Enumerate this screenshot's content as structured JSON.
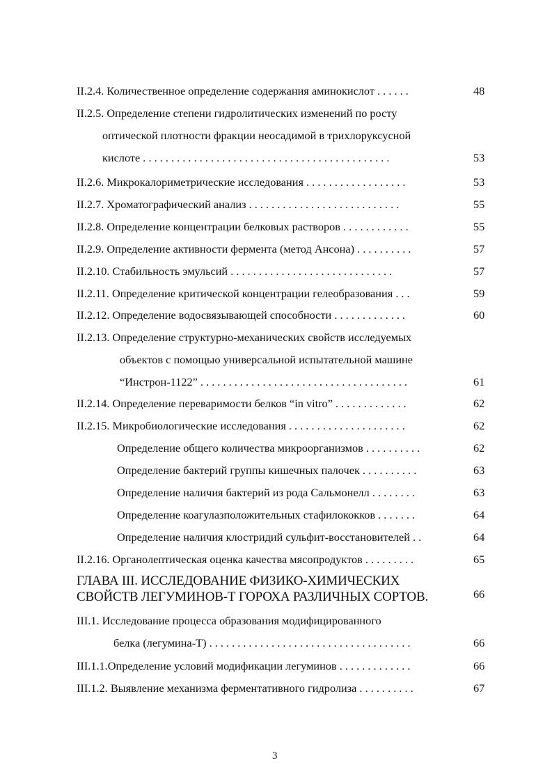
{
  "toc": [
    {
      "text": "II.2.4. Количественное определение содержания аминокислот . . . . . .",
      "page": "48"
    },
    {
      "text": "II.2.5. Определение степени гидролитических изменений по росту",
      "page": ""
    },
    {
      "text": "оптической плотности фракции неосадимой в трихлоруксусной",
      "page": ""
    },
    {
      "text": "кислоте . . . . . . . . . . . . . . . . . . . . . . . . . . . . . . . . . . . . . . . . . . . .",
      "page": "53"
    },
    {
      "text": "II.2.6. Микрокалориметрические исследования . . . . . . . . . . . . . . . . . .",
      "page": "53"
    },
    {
      "text": "II.2.7. Хроматографический анализ . . . . . . . . . . . . . . . . . . . . . . . . . . .",
      "page": "55"
    },
    {
      "text": "II.2.8. Определение концентрации белковых растворов . . . . . . . . . . . .",
      "page": "55"
    },
    {
      "text": "II.2.9. Определение активности фермента (метод Ансона) . . . . . . . . . .",
      "page": "57"
    },
    {
      "text": "II.2.10. Стабильность эмульсий . . . . . . . . . . . . . . . . . . . . . . . . . . . . .",
      "page": "57"
    },
    {
      "text": "II.2.11. Определение критической концентрации гелеобразования . . .",
      "page": "59"
    },
    {
      "text": "II.2.12. Определение водосвязывающей способности . . . . . . . . . . . . .",
      "page": "60"
    },
    {
      "text": "II.2.13. Определение структурно-механических свойств исследуемых",
      "page": ""
    },
    {
      "text": "объектов с помощью универсальной испытательной машине",
      "page": ""
    },
    {
      "text": "“Инстрон-1122” . . . . . . . . . . . . . . . . . . . . . . . . . . . . . . . . . . . . .",
      "page": "61"
    },
    {
      "text": "II.2.14. Определение переваримости белков “in vitro” . . . . . . . . . . . . .",
      "page": "62"
    },
    {
      "text": "II.2.15. Микробиологические  исследования . . . . . . . . . . . . . . . . . . . . .",
      "page": "62"
    },
    {
      "text": "Определение общего количества микроорганизмов . . . . . . . . . .",
      "page": "62"
    },
    {
      "text": "Определение бактерий группы кишечных палочек . . . . . . . . . .",
      "page": "63"
    },
    {
      "text": "Определение наличия бактерий из рода Сальмонелл . . . . . . . .",
      "page": "63"
    },
    {
      "text": "Определение коагулазположительных стафилококков . . . . . . .",
      "page": "64"
    },
    {
      "text": "Определение наличия клостридий сульфит-восстановителей . .",
      "page": "64"
    },
    {
      "text": "II.2.16. Органолептическая оценка качества мясопродуктов . . . . . . . . .",
      "page": "65"
    },
    {
      "text": "ГЛАВА III.  ИССЛЕДОВАНИЕ ФИЗИКО-ХИМИЧЕСКИХ",
      "page": ""
    },
    {
      "text": "СВОЙСТВ ЛЕГУМИНОВ-Т ГОРОХА РАЗЛИЧНЫХ СОРТОВ.",
      "page": "66"
    },
    {
      "text": "III.1.   Исследование процесса образования модифицированного",
      "page": ""
    },
    {
      "text": "белка  (легумина-Т) . . . . . . . . . . . . . . . . . . . . . . . . . . . . . . . . .  . . .",
      "page": "66"
    },
    {
      "text": "III.1.1.Определение условий модификации легуминов . . . . . . . . . . . . .",
      "page": "66"
    },
    {
      "text": "III.1.2. Выявление механизма ферментативного гидролиза . . . . . . . . . .",
      "page": "67"
    }
  ],
  "page_number": "3"
}
